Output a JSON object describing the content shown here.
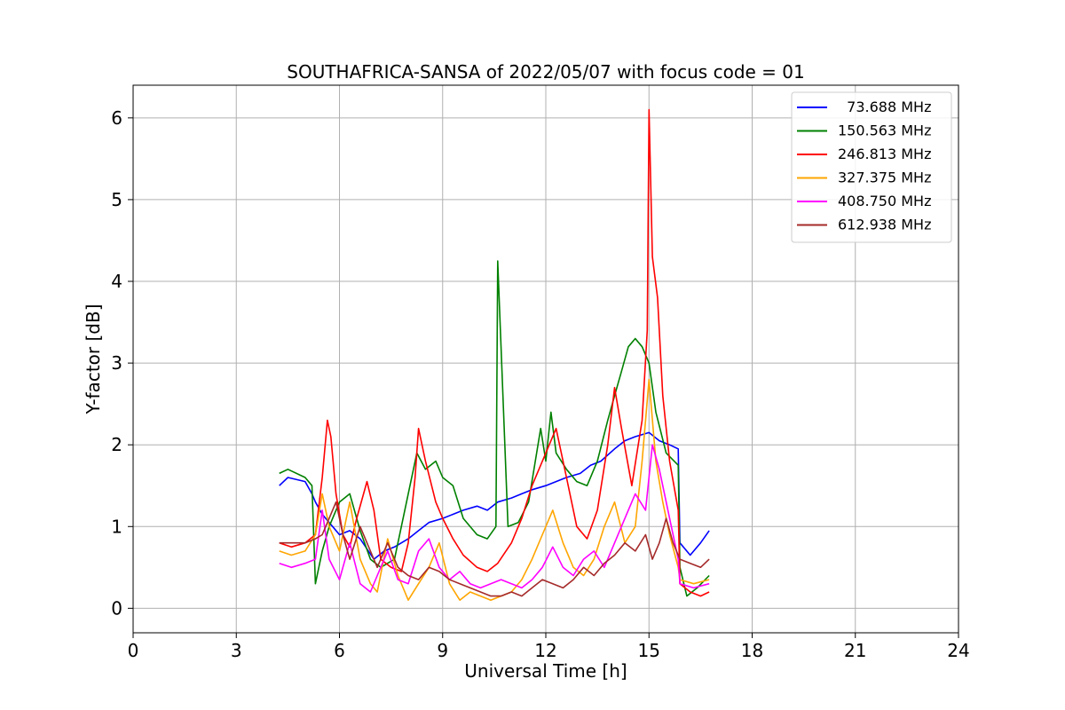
{
  "chart_data": {
    "type": "line",
    "title": "SOUTHAFRICA-SANSA of 2022/05/07 with focus code = 01",
    "xlabel": "Universal Time [h]",
    "ylabel": "Y-factor [dB]",
    "xlim": [
      0,
      24
    ],
    "ylim": [
      -0.3,
      6.4
    ],
    "xticks": [
      0,
      3,
      6,
      9,
      12,
      15,
      18,
      21,
      24
    ],
    "yticks": [
      0,
      1,
      2,
      3,
      4,
      5,
      6
    ],
    "grid": true,
    "legend_position": "top-right",
    "series": [
      {
        "name": "  73.688 MHz",
        "color": "#0000ff",
        "x": [
          4.25,
          4.5,
          5.0,
          5.2,
          5.3,
          5.5,
          5.8,
          6.0,
          6.3,
          6.6,
          7.0,
          7.3,
          7.6,
          8.0,
          8.3,
          8.6,
          9.0,
          9.3,
          9.6,
          10.0,
          10.3,
          10.6,
          11.0,
          11.3,
          11.6,
          12.0,
          12.3,
          12.6,
          13.0,
          13.3,
          13.6,
          14.0,
          14.3,
          14.6,
          15.0,
          15.3,
          15.6,
          15.85,
          15.9,
          16.2,
          16.5,
          16.75
        ],
        "y": [
          1.5,
          1.6,
          1.55,
          1.4,
          1.3,
          1.15,
          1.0,
          0.9,
          0.95,
          0.85,
          0.6,
          0.7,
          0.75,
          0.85,
          0.95,
          1.05,
          1.1,
          1.15,
          1.2,
          1.25,
          1.2,
          1.3,
          1.35,
          1.4,
          1.45,
          1.5,
          1.55,
          1.6,
          1.65,
          1.75,
          1.8,
          1.95,
          2.05,
          2.1,
          2.15,
          2.05,
          2.0,
          1.95,
          0.8,
          0.65,
          0.8,
          0.95
        ]
      },
      {
        "name": "150.563 MHz",
        "color": "#008000",
        "x": [
          4.25,
          4.5,
          5.0,
          5.2,
          5.3,
          5.5,
          5.7,
          6.0,
          6.3,
          6.6,
          6.9,
          7.2,
          7.6,
          8.0,
          8.25,
          8.5,
          8.8,
          9.0,
          9.3,
          9.6,
          10.0,
          10.3,
          10.55,
          10.6,
          10.9,
          11.2,
          11.5,
          11.85,
          12.0,
          12.15,
          12.3,
          12.6,
          12.9,
          13.2,
          13.5,
          13.8,
          14.0,
          14.2,
          14.4,
          14.6,
          14.8,
          15.0,
          15.2,
          15.5,
          15.85,
          15.9,
          16.1,
          16.4,
          16.75
        ],
        "y": [
          1.65,
          1.7,
          1.6,
          1.5,
          0.3,
          0.7,
          1.0,
          1.3,
          1.4,
          0.95,
          0.6,
          0.5,
          0.6,
          1.4,
          1.9,
          1.7,
          1.8,
          1.6,
          1.5,
          1.1,
          0.9,
          0.85,
          1.0,
          4.25,
          1.0,
          1.05,
          1.3,
          2.2,
          1.8,
          2.4,
          1.9,
          1.7,
          1.55,
          1.5,
          1.8,
          2.3,
          2.6,
          2.9,
          3.2,
          3.3,
          3.2,
          3.0,
          2.4,
          1.9,
          1.75,
          0.5,
          0.15,
          0.25,
          0.4
        ]
      },
      {
        "name": "246.813 MHz",
        "color": "#ff0000",
        "x": [
          4.25,
          4.6,
          5.0,
          5.3,
          5.5,
          5.65,
          5.75,
          5.9,
          6.1,
          6.3,
          6.5,
          6.8,
          7.0,
          7.2,
          7.5,
          7.8,
          8.0,
          8.2,
          8.3,
          8.5,
          8.8,
          9.0,
          9.3,
          9.6,
          10.0,
          10.3,
          10.6,
          11.0,
          11.3,
          11.6,
          12.0,
          12.3,
          12.6,
          12.9,
          13.2,
          13.5,
          13.8,
          14.0,
          14.2,
          14.5,
          14.8,
          14.95,
          15.0,
          15.1,
          15.25,
          15.4,
          15.6,
          15.85,
          15.9,
          16.2,
          16.5,
          16.75
        ],
        "y": [
          0.8,
          0.75,
          0.8,
          0.9,
          1.6,
          2.3,
          2.1,
          1.4,
          0.9,
          0.75,
          1.1,
          1.55,
          1.2,
          0.6,
          0.5,
          0.45,
          0.8,
          1.6,
          2.2,
          1.8,
          1.3,
          1.1,
          0.85,
          0.65,
          0.5,
          0.45,
          0.55,
          0.8,
          1.1,
          1.5,
          1.9,
          2.2,
          1.6,
          1.0,
          0.85,
          1.2,
          2.0,
          2.7,
          2.2,
          1.5,
          2.3,
          3.4,
          6.1,
          4.3,
          3.8,
          2.6,
          1.8,
          1.2,
          0.3,
          0.2,
          0.15,
          0.2
        ]
      },
      {
        "name": "327.375 MHz",
        "color": "#ffa500",
        "x": [
          4.25,
          4.6,
          5.0,
          5.3,
          5.5,
          5.7,
          6.0,
          6.3,
          6.6,
          6.9,
          7.1,
          7.4,
          7.7,
          8.0,
          8.3,
          8.6,
          8.9,
          9.2,
          9.5,
          9.8,
          10.1,
          10.4,
          10.7,
          11.0,
          11.3,
          11.6,
          11.9,
          12.2,
          12.5,
          12.8,
          13.1,
          13.4,
          13.7,
          14.0,
          14.3,
          14.6,
          14.8,
          15.0,
          15.2,
          15.4,
          15.6,
          15.85,
          15.9,
          16.3,
          16.75
        ],
        "y": [
          0.7,
          0.65,
          0.7,
          0.9,
          1.4,
          1.0,
          0.7,
          1.3,
          0.6,
          0.3,
          0.2,
          0.85,
          0.4,
          0.1,
          0.3,
          0.5,
          0.8,
          0.3,
          0.1,
          0.2,
          0.15,
          0.1,
          0.15,
          0.2,
          0.35,
          0.6,
          0.9,
          1.2,
          0.8,
          0.5,
          0.4,
          0.6,
          1.0,
          1.3,
          0.8,
          1.0,
          1.8,
          2.8,
          1.8,
          1.3,
          0.9,
          0.5,
          0.35,
          0.3,
          0.35
        ]
      },
      {
        "name": "408.750 MHz",
        "color": "#ff00ff",
        "x": [
          4.25,
          4.6,
          5.0,
          5.3,
          5.5,
          5.7,
          6.0,
          6.3,
          6.6,
          6.9,
          7.1,
          7.4,
          7.7,
          8.0,
          8.3,
          8.6,
          8.9,
          9.2,
          9.5,
          9.8,
          10.1,
          10.4,
          10.7,
          11.0,
          11.3,
          11.6,
          11.9,
          12.2,
          12.5,
          12.8,
          13.1,
          13.4,
          13.7,
          14.0,
          14.3,
          14.6,
          14.9,
          15.1,
          15.3,
          15.6,
          15.85,
          15.9,
          16.3,
          16.75
        ],
        "y": [
          0.55,
          0.5,
          0.55,
          0.6,
          1.2,
          0.6,
          0.35,
          0.8,
          0.3,
          0.2,
          0.4,
          0.7,
          0.35,
          0.3,
          0.7,
          0.85,
          0.5,
          0.35,
          0.45,
          0.3,
          0.25,
          0.3,
          0.35,
          0.3,
          0.25,
          0.35,
          0.5,
          0.75,
          0.5,
          0.4,
          0.6,
          0.7,
          0.5,
          0.8,
          1.1,
          1.4,
          1.2,
          2.0,
          1.7,
          1.1,
          0.6,
          0.3,
          0.25,
          0.3
        ]
      },
      {
        "name": "612.938 MHz",
        "color": "#a52a2a",
        "x": [
          4.25,
          4.6,
          5.0,
          5.3,
          5.5,
          5.7,
          5.9,
          6.1,
          6.3,
          6.6,
          6.9,
          7.1,
          7.4,
          7.7,
          8.0,
          8.3,
          8.6,
          8.9,
          9.2,
          9.5,
          9.8,
          10.1,
          10.4,
          10.7,
          11.0,
          11.3,
          11.6,
          11.9,
          12.2,
          12.5,
          12.8,
          13.1,
          13.4,
          13.7,
          14.0,
          14.3,
          14.6,
          14.9,
          15.1,
          15.3,
          15.5,
          15.7,
          15.9,
          16.2,
          16.5,
          16.75
        ],
        "y": [
          0.8,
          0.8,
          0.8,
          0.85,
          0.9,
          1.1,
          1.3,
          0.9,
          0.6,
          1.0,
          0.7,
          0.5,
          0.8,
          0.5,
          0.4,
          0.35,
          0.5,
          0.45,
          0.35,
          0.3,
          0.25,
          0.2,
          0.15,
          0.15,
          0.2,
          0.15,
          0.25,
          0.35,
          0.3,
          0.25,
          0.35,
          0.5,
          0.4,
          0.55,
          0.65,
          0.8,
          0.7,
          0.9,
          0.6,
          0.8,
          1.1,
          0.8,
          0.6,
          0.55,
          0.5,
          0.6
        ]
      }
    ]
  }
}
